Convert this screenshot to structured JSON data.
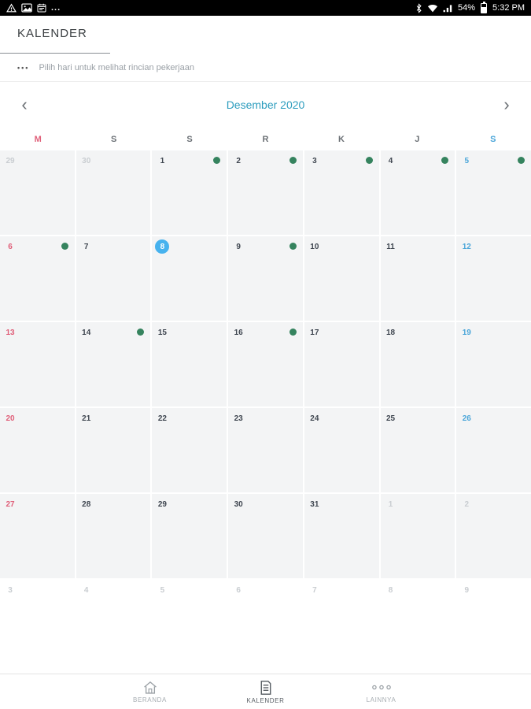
{
  "colors": {
    "accent": "#2d9dbe",
    "sunday": "#e0607a",
    "saturday": "#4ba6d9",
    "dot": "#35835e",
    "selected": "#47b2ee"
  },
  "status_bar": {
    "left_icons": [
      "warning-icon",
      "image-icon",
      "calendar-icon"
    ],
    "more_label": "...",
    "battery_percent": "54%",
    "time": "5:32 PM"
  },
  "header": {
    "title": "KALENDER",
    "hint_dots": "•••",
    "hint": "Pilih hari untuk melihat rincian pekerjaan"
  },
  "month_nav": {
    "prev": "‹",
    "label": "Desember 2020",
    "next": "›"
  },
  "weekdays": [
    {
      "label": "M",
      "color": "#e0607a"
    },
    {
      "label": "S"
    },
    {
      "label": "S"
    },
    {
      "label": "R"
    },
    {
      "label": "K"
    },
    {
      "label": "J"
    },
    {
      "label": "S",
      "color": "#4ba6d9"
    }
  ],
  "calendar": {
    "month": "Desember 2020",
    "selected_day": "8",
    "event_days": [
      "1",
      "2",
      "3",
      "4",
      "5",
      "6",
      "9",
      "14",
      "16"
    ],
    "weeks": [
      [
        {
          "d": "29",
          "out": true
        },
        {
          "d": "30",
          "out": true
        },
        {
          "d": "1",
          "dot": true
        },
        {
          "d": "2",
          "dot": true
        },
        {
          "d": "3",
          "dot": true
        },
        {
          "d": "4",
          "dot": true
        },
        {
          "d": "5",
          "dot": true
        }
      ],
      [
        {
          "d": "6",
          "dot": true
        },
        {
          "d": "7"
        },
        {
          "d": "8",
          "sel": true
        },
        {
          "d": "9",
          "dot": true
        },
        {
          "d": "10"
        },
        {
          "d": "11"
        },
        {
          "d": "12"
        }
      ],
      [
        {
          "d": "13"
        },
        {
          "d": "14",
          "dot": true
        },
        {
          "d": "15"
        },
        {
          "d": "16",
          "dot": true
        },
        {
          "d": "17"
        },
        {
          "d": "18"
        },
        {
          "d": "19"
        }
      ],
      [
        {
          "d": "20"
        },
        {
          "d": "21"
        },
        {
          "d": "22"
        },
        {
          "d": "23"
        },
        {
          "d": "24"
        },
        {
          "d": "25"
        },
        {
          "d": "26"
        }
      ],
      [
        {
          "d": "27"
        },
        {
          "d": "28"
        },
        {
          "d": "29"
        },
        {
          "d": "30"
        },
        {
          "d": "31"
        },
        {
          "d": "1",
          "out": true
        },
        {
          "d": "2",
          "out": true
        }
      ],
      [
        {
          "d": "3",
          "out": true
        },
        {
          "d": "4",
          "out": true
        },
        {
          "d": "5",
          "out": true
        },
        {
          "d": "6",
          "out": true
        },
        {
          "d": "7",
          "out": true
        },
        {
          "d": "8",
          "out": true
        },
        {
          "d": "9",
          "out": true
        }
      ]
    ]
  },
  "bottom_nav": {
    "items": [
      {
        "label": "BERANDA",
        "icon": "home-icon",
        "active": false
      },
      {
        "label": "KALENDER",
        "icon": "document-icon",
        "active": true
      },
      {
        "label": "LAINNYA",
        "icon": "more-circles-icon",
        "active": false
      }
    ]
  }
}
